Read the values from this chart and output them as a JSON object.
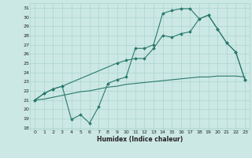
{
  "xlabel": "Humidex (Indice chaleur)",
  "bg_color": "#cce8e4",
  "grid_color": "#aad4cc",
  "line_color": "#2a7a6e",
  "xlim": [
    -0.5,
    23.5
  ],
  "ylim": [
    17.8,
    31.5
  ],
  "xticks": [
    0,
    1,
    2,
    3,
    4,
    5,
    6,
    7,
    8,
    9,
    10,
    11,
    12,
    13,
    14,
    15,
    16,
    17,
    18,
    19,
    20,
    21,
    22,
    23
  ],
  "yticks": [
    18,
    19,
    20,
    21,
    22,
    23,
    24,
    25,
    26,
    27,
    28,
    29,
    30,
    31
  ],
  "line1_x": [
    0,
    1,
    2,
    3,
    4,
    5,
    6,
    7,
    8,
    9,
    10,
    11,
    12,
    13,
    14,
    15,
    16,
    17,
    18,
    19,
    20,
    21,
    22,
    23
  ],
  "line1_y": [
    21.0,
    21.7,
    22.2,
    22.5,
    18.9,
    19.4,
    18.5,
    20.3,
    22.8,
    23.2,
    23.5,
    26.6,
    26.6,
    27.0,
    30.4,
    30.7,
    30.9,
    30.9,
    29.8,
    30.2,
    28.7,
    27.2,
    26.2,
    23.2
  ],
  "line2_x": [
    0,
    1,
    2,
    3,
    9,
    10,
    11,
    12,
    13,
    14,
    15,
    16,
    17,
    18,
    19,
    20,
    21,
    22,
    23
  ],
  "line2_y": [
    21.0,
    21.7,
    22.2,
    22.5,
    25.0,
    25.3,
    25.5,
    25.5,
    26.6,
    28.0,
    27.8,
    28.2,
    28.4,
    29.8,
    30.2,
    28.7,
    27.2,
    26.2,
    23.2
  ],
  "line3_x": [
    0,
    1,
    2,
    3,
    4,
    5,
    6,
    7,
    8,
    9,
    10,
    11,
    12,
    13,
    14,
    15,
    16,
    17,
    18,
    19,
    20,
    21,
    22,
    23
  ],
  "line3_y": [
    21.0,
    21.1,
    21.3,
    21.5,
    21.7,
    21.9,
    22.0,
    22.2,
    22.4,
    22.5,
    22.7,
    22.8,
    22.9,
    23.0,
    23.1,
    23.2,
    23.3,
    23.4,
    23.5,
    23.5,
    23.6,
    23.6,
    23.6,
    23.5
  ]
}
